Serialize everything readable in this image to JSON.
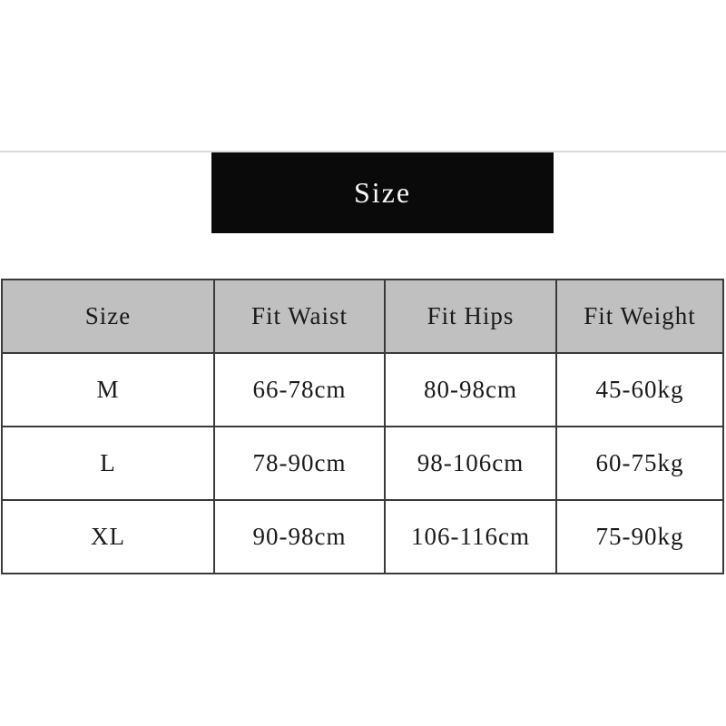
{
  "banner": {
    "title": "Size"
  },
  "table": {
    "headers": [
      "Size",
      "Fit Waist",
      "Fit Hips",
      "Fit Weight"
    ],
    "rows": [
      [
        "M",
        "66-78cm",
        "80-98cm",
        "45-60kg"
      ],
      [
        "L",
        "78-90cm",
        "98-106cm",
        "60-75kg"
      ],
      [
        "XL",
        "90-98cm",
        "106-116cm",
        "75-90kg"
      ]
    ]
  },
  "colors": {
    "banner_background": "#0a0a0a",
    "banner_text": "#fafafa",
    "header_background": "#c0c0c0",
    "table_border": "#3a3a3a",
    "top_rule": "#d9d9d9",
    "cell_text": "#1a1a1a"
  },
  "chart_data": {
    "type": "table",
    "title": "Size",
    "columns": [
      "Size",
      "Fit Waist",
      "Fit Hips",
      "Fit Weight"
    ],
    "rows": [
      {
        "size": "M",
        "fit_waist": "66-78cm",
        "fit_hips": "80-98cm",
        "fit_weight": "45-60kg"
      },
      {
        "size": "L",
        "fit_waist": "78-90cm",
        "fit_hips": "98-106cm",
        "fit_weight": "60-75kg"
      },
      {
        "size": "XL",
        "fit_waist": "90-98cm",
        "fit_hips": "106-116cm",
        "fit_weight": "75-90kg"
      }
    ]
  }
}
